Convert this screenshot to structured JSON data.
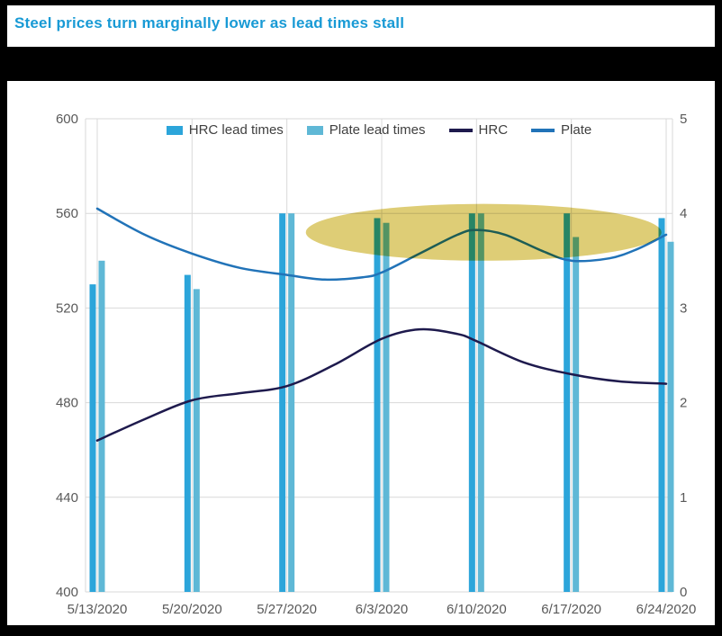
{
  "title": "Steel prices turn marginally lower as lead times stall",
  "chart_data": {
    "type": "bar",
    "subtype": "combo-bar-line-dual-axis",
    "categories": [
      "5/13/2020",
      "5/20/2020",
      "5/27/2020",
      "6/3/2020",
      "6/10/2020",
      "6/17/2020",
      "6/24/2020"
    ],
    "left_axis": {
      "min": 400,
      "max": 600,
      "tick_values": [
        600,
        560,
        520,
        480,
        440,
        400
      ]
    },
    "right_axis": {
      "min": 0,
      "max": 5,
      "tick_values": [
        5,
        4,
        3,
        2,
        1,
        0
      ]
    },
    "bar_series": [
      {
        "name": "HRC lead times",
        "axis": "right",
        "color": "#2CA5DA",
        "values": [
          3.25,
          3.35,
          4.0,
          3.95,
          4.0,
          4.0,
          3.95
        ]
      },
      {
        "name": "Plate lead times",
        "axis": "right",
        "color": "#5FB8D6",
        "values": [
          3.5,
          3.2,
          4.0,
          3.9,
          4.0,
          3.75,
          3.7
        ]
      }
    ],
    "line_series": [
      {
        "name": "HRC",
        "axis": "left",
        "color": "#1E1A4D",
        "points": [
          [
            0,
            464
          ],
          [
            0.5,
            473
          ],
          [
            1,
            481
          ],
          [
            1.5,
            484
          ],
          [
            2,
            487
          ],
          [
            2.5,
            496
          ],
          [
            3,
            507
          ],
          [
            3.4,
            511
          ],
          [
            3.8,
            509
          ],
          [
            4,
            506
          ],
          [
            4.5,
            497
          ],
          [
            5,
            492
          ],
          [
            5.5,
            489
          ],
          [
            6,
            488
          ]
        ]
      },
      {
        "name": "Plate",
        "axis": "left",
        "color": "#2173B8",
        "points": [
          [
            0,
            562
          ],
          [
            0.5,
            551
          ],
          [
            1,
            543
          ],
          [
            1.5,
            537
          ],
          [
            2,
            534
          ],
          [
            2.4,
            532
          ],
          [
            2.8,
            533
          ],
          [
            3,
            535
          ],
          [
            3.4,
            543
          ],
          [
            3.8,
            551
          ],
          [
            4,
            553
          ],
          [
            4.3,
            551
          ],
          [
            4.7,
            544
          ],
          [
            5,
            540
          ],
          [
            5.4,
            541
          ],
          [
            5.7,
            545
          ],
          [
            6,
            551
          ]
        ]
      }
    ],
    "highlight": {
      "shape": "ellipse",
      "from_index": 2.2,
      "to_index": 5.95,
      "center_value_left": 552,
      "half_height_left_units": 12,
      "color": "#D8C45E"
    },
    "legend_position": "top-center",
    "grid": true
  },
  "colors": {
    "background": "#000000",
    "panel": "#FFFFFF",
    "title": "#189AD5",
    "axis_text": "#595959",
    "gridline": "#D9D9D9"
  }
}
